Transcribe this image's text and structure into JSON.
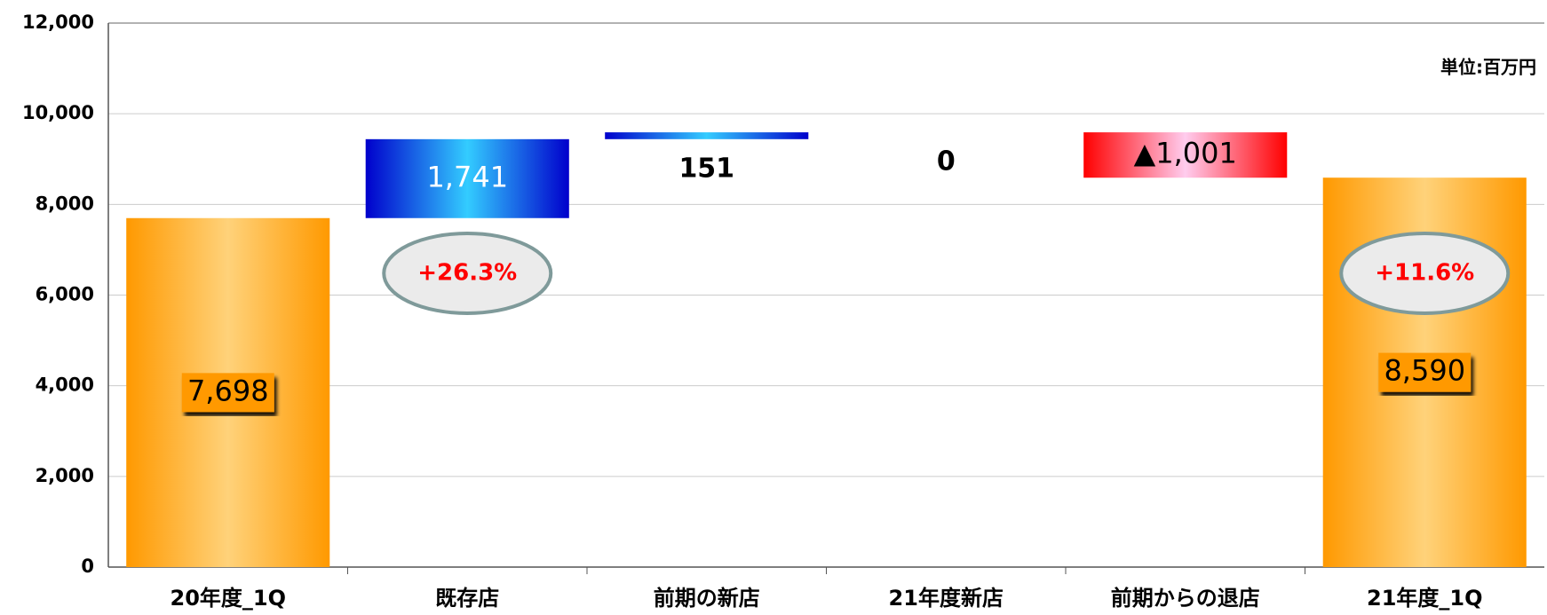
{
  "chart_data": {
    "type": "waterfall",
    "unit_note": "単位:百万円",
    "categories": [
      "20年度_1Q",
      "既存店",
      "前期の新店",
      "21年度新店",
      "前期からの退店",
      "21年度_1Q"
    ],
    "measure": [
      "absolute",
      "relative",
      "relative",
      "relative",
      "relative",
      "total"
    ],
    "values": [
      7698,
      1741,
      151,
      0,
      -1001,
      8590
    ],
    "value_labels": [
      "7,698",
      "1,741",
      "151",
      "0",
      "▲1,001",
      "8,590"
    ],
    "annotations": [
      "+26.3%",
      "+11.6%"
    ],
    "colors": {
      "total": "#ff9900",
      "increase": "#0000cc",
      "decrease": "#ff0000"
    },
    "ylim": [
      0,
      12000
    ],
    "yticks": [
      0,
      {
        "value": 2000,
        "label": "2,000"
      },
      {
        "value": 4000,
        "label": "4,000"
      },
      {
        "value": 6000,
        "label": "6,000"
      },
      {
        "value": 8000,
        "label": "8,000"
      },
      {
        "value": 10000,
        "label": "10,000"
      },
      {
        "value": 12000,
        "label": "12,000"
      }
    ],
    "grid": true
  }
}
